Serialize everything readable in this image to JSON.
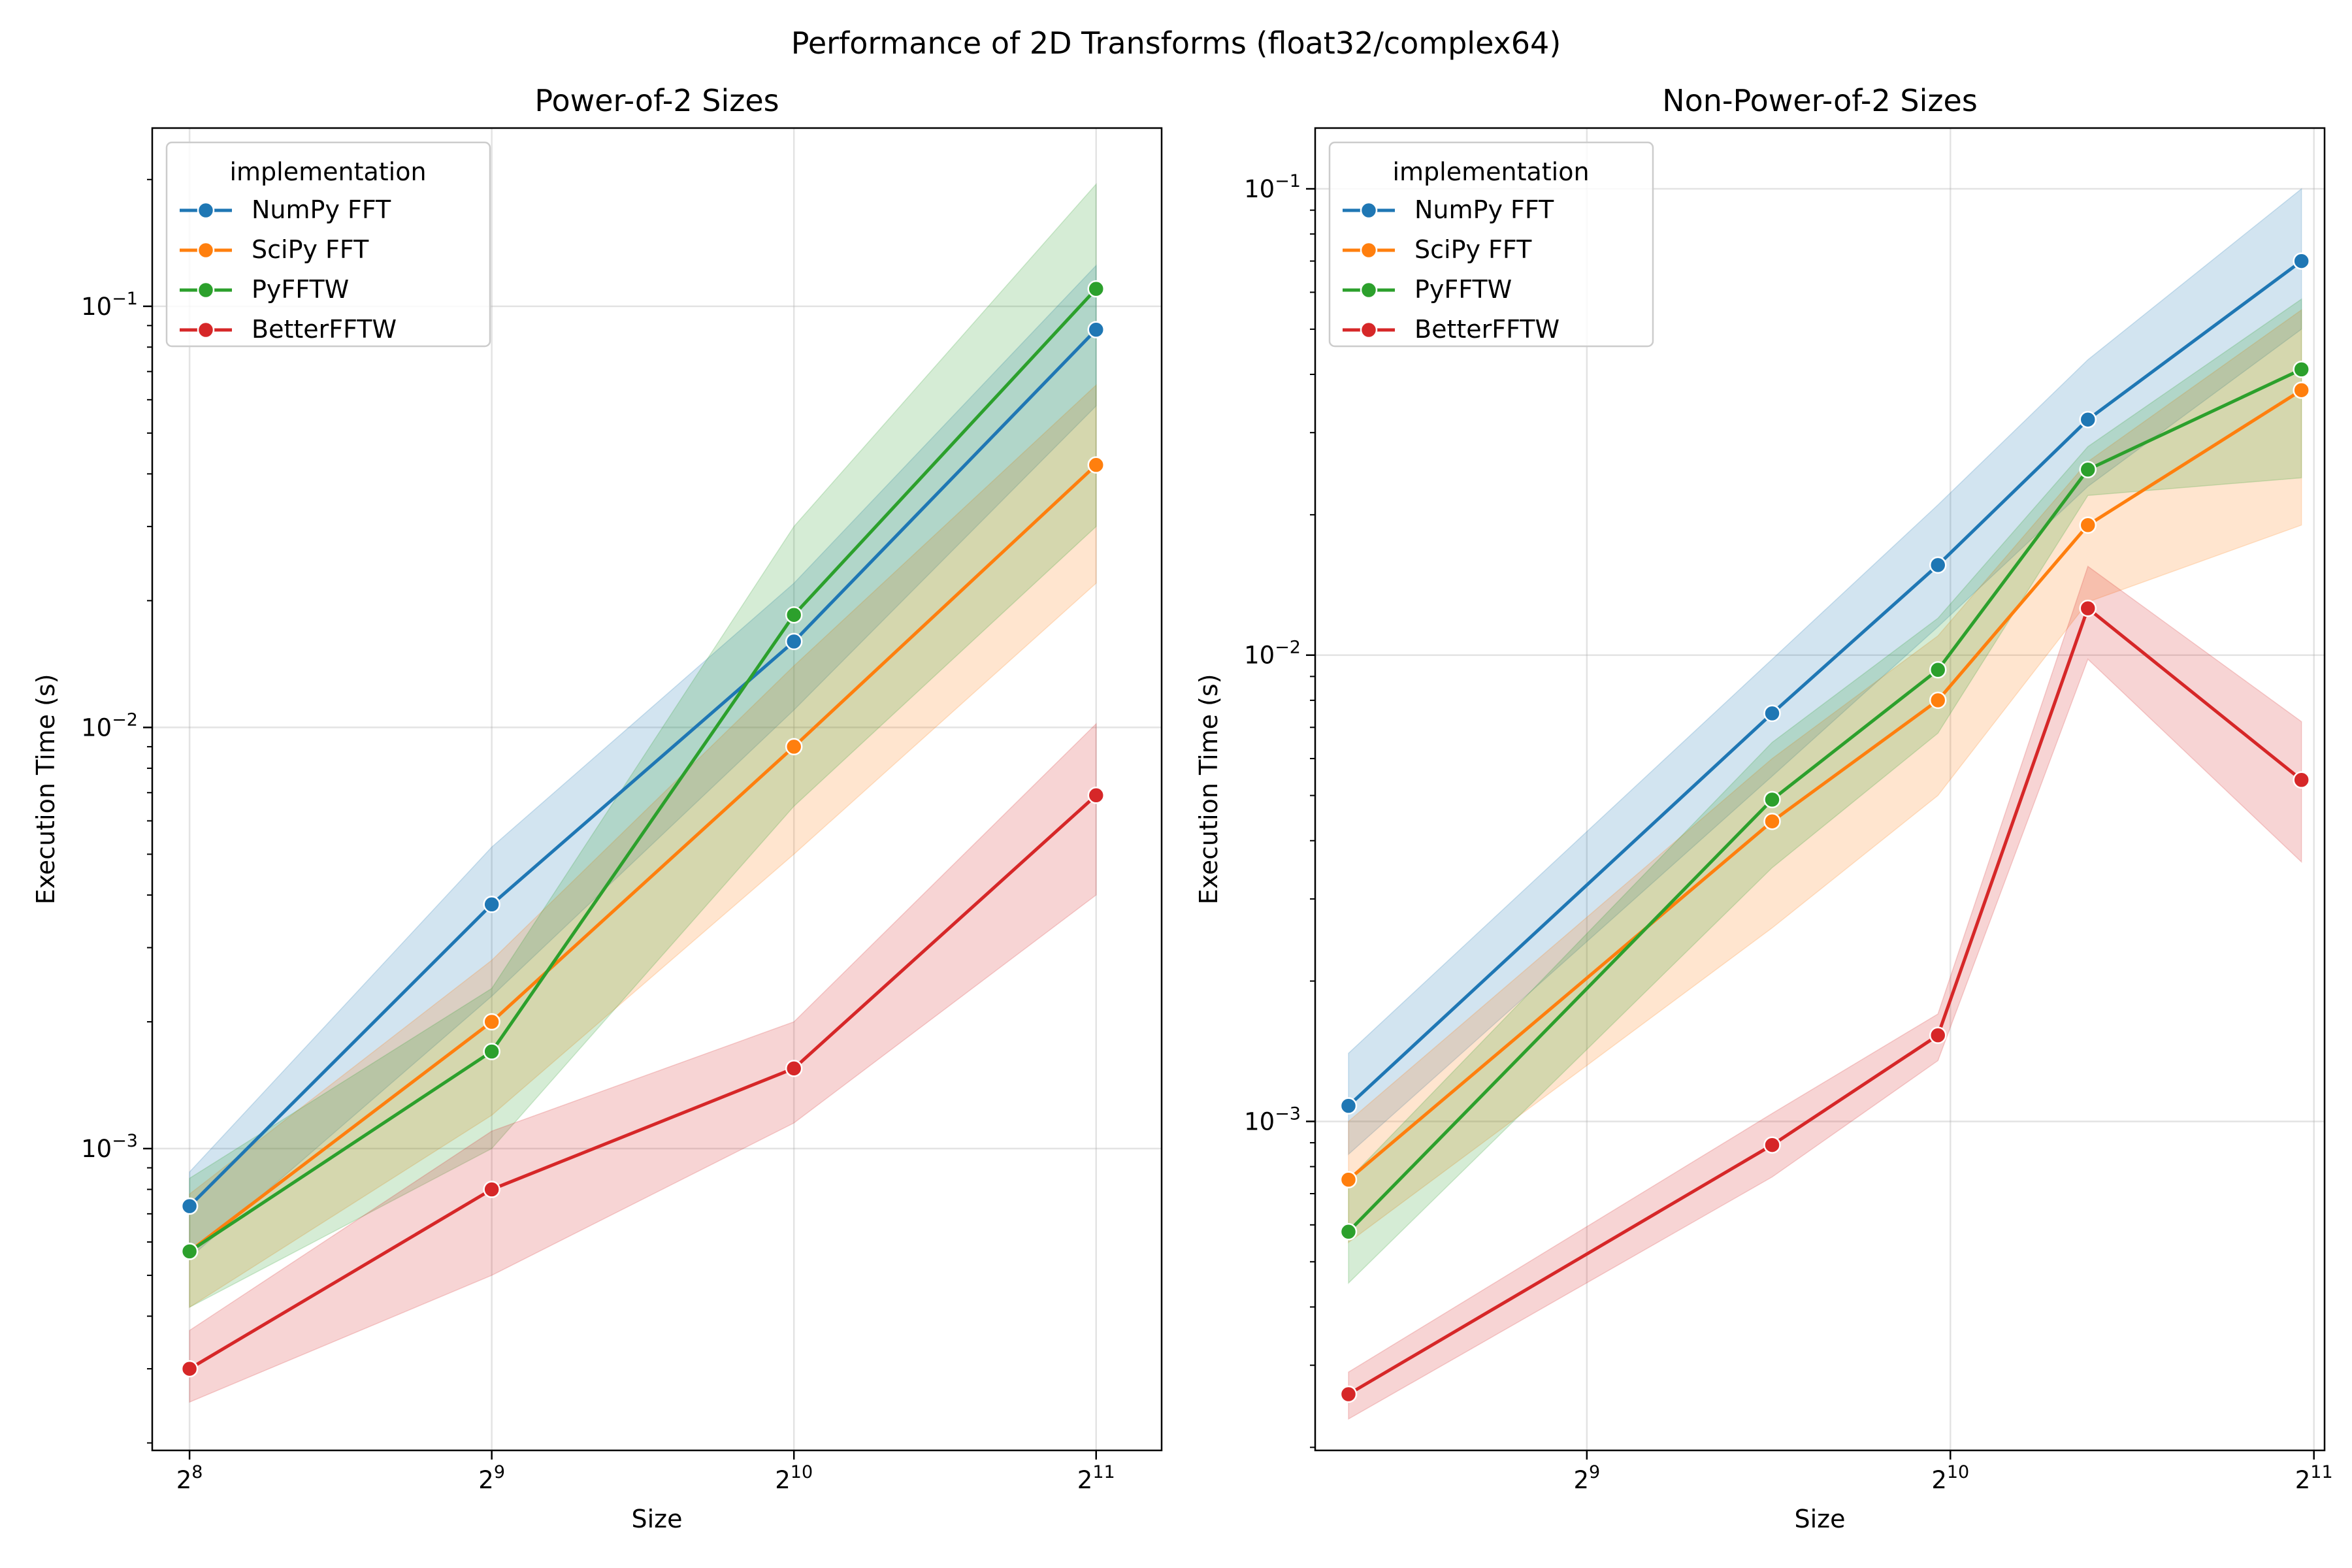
{
  "figure": {
    "suptitle": "Performance of 2D Transforms (float32/complex64)"
  },
  "colors": {
    "NumPy FFT": "#1f77b4",
    "SciPy FFT": "#ff7f0e",
    "PyFFTW": "#2ca02c",
    "BetterFFTW": "#d62728"
  },
  "chart_data": [
    {
      "type": "line",
      "title": "Power-of-2 Sizes",
      "xlabel": "Size",
      "ylabel": "Execution Time (s)",
      "xscale": "log2",
      "yscale": "log10",
      "xlim": [
        235,
        2380
      ],
      "ylim": [
        0.000192,
        0.265
      ],
      "grid": true,
      "xticks": [
        {
          "base": "2",
          "exp": "8",
          "value": 256
        },
        {
          "base": "2",
          "exp": "9",
          "value": 512
        },
        {
          "base": "2",
          "exp": "10",
          "value": 1024
        },
        {
          "base": "2",
          "exp": "11",
          "value": 2048
        }
      ],
      "yticks": [
        {
          "base": "10",
          "exp": "−3",
          "value": 0.001
        },
        {
          "base": "10",
          "exp": "−2",
          "value": 0.01
        },
        {
          "base": "10",
          "exp": "−1",
          "value": 0.1
        }
      ],
      "legend": {
        "title": "implementation",
        "position": "upper-left"
      },
      "series": [
        {
          "name": "NumPy FFT",
          "x": [
            256,
            512,
            1024,
            2048
          ],
          "y": [
            0.00073,
            0.0038,
            0.016,
            0.088
          ],
          "lower": [
            0.00055,
            0.0023,
            0.011,
            0.058
          ],
          "upper": [
            0.00088,
            0.0052,
            0.022,
            0.125
          ]
        },
        {
          "name": "SciPy FFT",
          "x": [
            256,
            512,
            1024,
            2048
          ],
          "y": [
            0.00057,
            0.002,
            0.009,
            0.042
          ],
          "lower": [
            0.00042,
            0.0012,
            0.005,
            0.022
          ],
          "upper": [
            0.00078,
            0.0028,
            0.014,
            0.065
          ]
        },
        {
          "name": "PyFFTW",
          "x": [
            256,
            512,
            1024,
            2048
          ],
          "y": [
            0.00057,
            0.0017,
            0.0185,
            0.11
          ],
          "lower": [
            0.00042,
            0.001,
            0.0065,
            0.03
          ],
          "upper": [
            0.00085,
            0.0024,
            0.03,
            0.195
          ]
        },
        {
          "name": "BetterFFTW",
          "x": [
            256,
            512,
            1024,
            2048
          ],
          "y": [
            0.0003,
            0.0008,
            0.00155,
            0.0069
          ],
          "lower": [
            0.00025,
            0.0005,
            0.00115,
            0.004
          ],
          "upper": [
            0.00037,
            0.0011,
            0.002,
            0.0102
          ]
        }
      ]
    },
    {
      "type": "line",
      "title": "Non-Power-of-2 Sizes",
      "xlabel": "Size",
      "ylabel": "Execution Time (s)",
      "xscale": "log2",
      "yscale": "log10",
      "xlim": [
        305,
        2090
      ],
      "ylim": [
        0.000197,
        0.135
      ],
      "grid": true,
      "xticks": [
        {
          "base": "2",
          "exp": "9",
          "value": 512
        },
        {
          "base": "2",
          "exp": "10",
          "value": 1024
        },
        {
          "base": "2",
          "exp": "11",
          "value": 2048
        }
      ],
      "yticks": [
        {
          "base": "10",
          "exp": "−3",
          "value": 0.001
        },
        {
          "base": "10",
          "exp": "−2",
          "value": 0.01
        },
        {
          "base": "10",
          "exp": "−1",
          "value": 0.1
        }
      ],
      "legend": {
        "title": "implementation",
        "position": "upper-left"
      },
      "series": [
        {
          "name": "NumPy FFT",
          "x": [
            325,
            729,
            1000,
            1331,
            2000
          ],
          "y": [
            0.00108,
            0.0075,
            0.0156,
            0.032,
            0.07
          ],
          "lower": [
            0.00085,
            0.0055,
            0.0115,
            0.023,
            0.05
          ],
          "upper": [
            0.0014,
            0.0098,
            0.021,
            0.043,
            0.1
          ]
        },
        {
          "name": "SciPy FFT",
          "x": [
            325,
            729,
            1000,
            1331,
            2000
          ],
          "y": [
            0.00075,
            0.0044,
            0.008,
            0.019,
            0.037
          ],
          "lower": [
            0.00055,
            0.0026,
            0.005,
            0.013,
            0.019
          ],
          "upper": [
            0.001,
            0.006,
            0.011,
            0.026,
            0.055
          ]
        },
        {
          "name": "PyFFTW",
          "x": [
            325,
            729,
            1000,
            1331,
            2000
          ],
          "y": [
            0.00058,
            0.0049,
            0.0093,
            0.025,
            0.041
          ],
          "lower": [
            0.00045,
            0.0035,
            0.0068,
            0.022,
            0.024
          ],
          "upper": [
            0.00075,
            0.0065,
            0.012,
            0.028,
            0.058
          ]
        },
        {
          "name": "BetterFFTW",
          "x": [
            325,
            729,
            1000,
            1331,
            2000
          ],
          "y": [
            0.00026,
            0.00089,
            0.00153,
            0.0126,
            0.0054
          ],
          "lower": [
            0.00023,
            0.00076,
            0.00135,
            0.0098,
            0.0036
          ],
          "upper": [
            0.00029,
            0.00104,
            0.0017,
            0.0155,
            0.0072
          ]
        }
      ]
    }
  ]
}
